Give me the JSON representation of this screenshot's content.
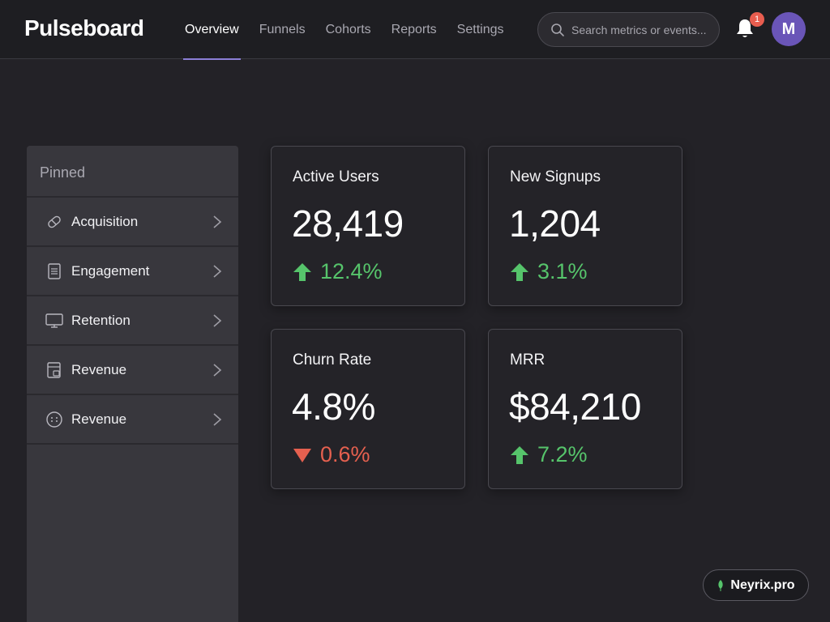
{
  "app": {
    "brand": "Pulseboard"
  },
  "nav": {
    "items": [
      {
        "label": "Overview",
        "active": true
      },
      {
        "label": "Funnels"
      },
      {
        "label": "Cohorts"
      },
      {
        "label": "Reports"
      },
      {
        "label": "Settings"
      }
    ]
  },
  "search": {
    "placeholder": "Search metrics or events..."
  },
  "notifications": {
    "count": "1",
    "icon": "bell-icon"
  },
  "user": {
    "initial": "M"
  },
  "sidebar": {
    "title": "Pinned",
    "items": [
      {
        "label": "Acquisition",
        "icon": "tag-icon"
      },
      {
        "label": "Engagement",
        "icon": "document-icon"
      },
      {
        "label": "Retention",
        "icon": "monitor-icon"
      },
      {
        "label": "Revenue",
        "icon": "calendar-icon"
      },
      {
        "label": "Revenue",
        "icon": "circle-dots-icon"
      }
    ]
  },
  "metrics": [
    {
      "title": "Active Users",
      "value": "28,419",
      "delta": "12.4%",
      "direction": "up"
    },
    {
      "title": "New Signups",
      "value": "1,204",
      "delta": "3.1%",
      "direction": "up"
    },
    {
      "title": "Churn Rate",
      "value": "4.8%",
      "delta": "0.6%",
      "direction": "down"
    },
    {
      "title": "MRR",
      "value": "$84,210",
      "delta": "7.2%",
      "direction": "up"
    }
  ],
  "watermark": {
    "text": "Neyrix.pro"
  },
  "colors": {
    "up": "#56c46b",
    "down": "#e5604f",
    "accent": "#8b7fd6",
    "avatar": "#6a55b8"
  }
}
